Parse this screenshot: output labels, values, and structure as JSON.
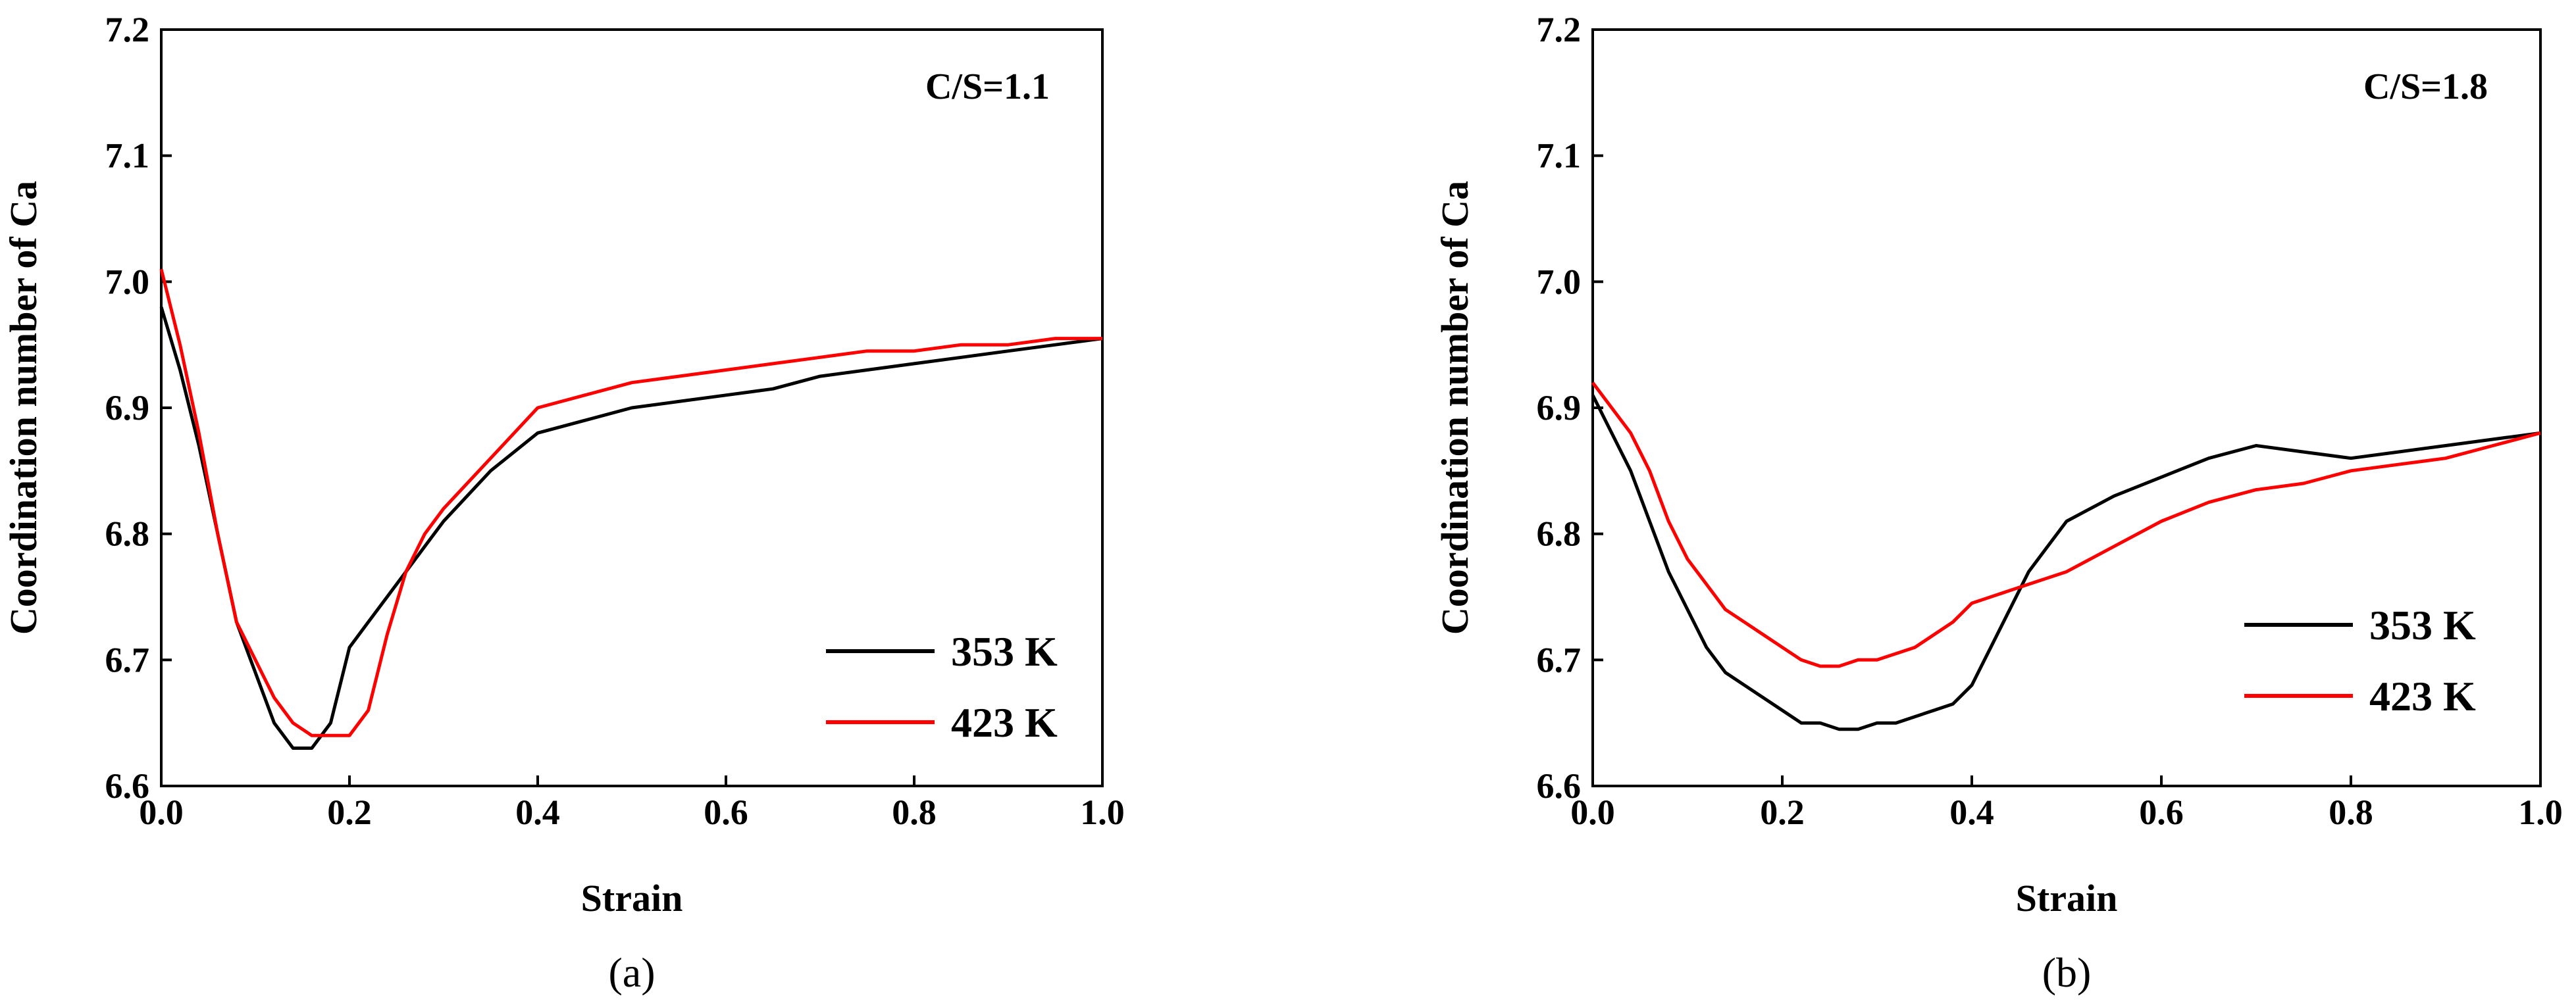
{
  "chart_data": [
    {
      "type": "line",
      "id": "a",
      "caption": "(a)",
      "annotation": "C/S=1.1",
      "xlabel": "Strain",
      "ylabel": "Coordination number of Ca",
      "xlim": [
        0.0,
        1.0
      ],
      "ylim": [
        6.6,
        7.2
      ],
      "xticks": [
        "0.0",
        "0.2",
        "0.4",
        "0.6",
        "0.8",
        "1.0"
      ],
      "yticks": [
        "6.6",
        "6.7",
        "6.8",
        "6.9",
        "7.0",
        "7.1",
        "7.2"
      ],
      "legend_position": "lower-right",
      "series": [
        {
          "name": "353 K",
          "color": "#000000",
          "x": [
            0.0,
            0.02,
            0.04,
            0.06,
            0.08,
            0.1,
            0.12,
            0.14,
            0.16,
            0.18,
            0.2,
            0.22,
            0.24,
            0.26,
            0.28,
            0.3,
            0.35,
            0.4,
            0.45,
            0.5,
            0.55,
            0.6,
            0.65,
            0.7,
            0.75,
            0.8,
            0.85,
            0.9,
            0.95,
            1.0
          ],
          "y": [
            6.98,
            6.93,
            6.87,
            6.8,
            6.73,
            6.69,
            6.65,
            6.63,
            6.63,
            6.65,
            6.71,
            6.73,
            6.75,
            6.77,
            6.79,
            6.81,
            6.85,
            6.88,
            6.89,
            6.9,
            6.905,
            6.91,
            6.915,
            6.925,
            6.93,
            6.935,
            6.94,
            6.945,
            6.95,
            6.955
          ]
        },
        {
          "name": "423 K",
          "color": "#ff0000",
          "x": [
            0.0,
            0.02,
            0.04,
            0.06,
            0.08,
            0.1,
            0.12,
            0.14,
            0.16,
            0.18,
            0.2,
            0.22,
            0.24,
            0.26,
            0.28,
            0.3,
            0.35,
            0.4,
            0.45,
            0.5,
            0.55,
            0.6,
            0.65,
            0.7,
            0.75,
            0.8,
            0.85,
            0.9,
            0.95,
            1.0
          ],
          "y": [
            7.01,
            6.95,
            6.88,
            6.8,
            6.73,
            6.7,
            6.67,
            6.65,
            6.64,
            6.64,
            6.64,
            6.66,
            6.72,
            6.77,
            6.8,
            6.82,
            6.86,
            6.9,
            6.91,
            6.92,
            6.925,
            6.93,
            6.935,
            6.94,
            6.945,
            6.945,
            6.95,
            6.95,
            6.955,
            6.955
          ]
        }
      ]
    },
    {
      "type": "line",
      "id": "b",
      "caption": "(b)",
      "annotation": "C/S=1.8",
      "xlabel": "Strain",
      "ylabel": "Coordination number of Ca",
      "xlim": [
        0.0,
        1.0
      ],
      "ylim": [
        6.6,
        7.2
      ],
      "xticks": [
        "0.0",
        "0.2",
        "0.4",
        "0.6",
        "0.8",
        "1.0"
      ],
      "yticks": [
        "6.6",
        "6.7",
        "6.8",
        "6.9",
        "7.0",
        "7.1",
        "7.2"
      ],
      "legend_position": "lower-right",
      "series": [
        {
          "name": "353 K",
          "color": "#000000",
          "x": [
            0.0,
            0.02,
            0.04,
            0.06,
            0.08,
            0.1,
            0.12,
            0.14,
            0.16,
            0.18,
            0.2,
            0.22,
            0.24,
            0.26,
            0.28,
            0.3,
            0.32,
            0.34,
            0.36,
            0.38,
            0.4,
            0.42,
            0.44,
            0.46,
            0.48,
            0.5,
            0.55,
            0.6,
            0.65,
            0.7,
            0.75,
            0.8,
            0.85,
            0.9,
            0.95,
            1.0
          ],
          "y": [
            6.91,
            6.88,
            6.85,
            6.81,
            6.77,
            6.74,
            6.71,
            6.69,
            6.68,
            6.67,
            6.66,
            6.65,
            6.65,
            6.645,
            6.645,
            6.65,
            6.65,
            6.655,
            6.66,
            6.665,
            6.68,
            6.71,
            6.74,
            6.77,
            6.79,
            6.81,
            6.83,
            6.845,
            6.86,
            6.87,
            6.865,
            6.86,
            6.865,
            6.87,
            6.875,
            6.88
          ]
        },
        {
          "name": "423 K",
          "color": "#ff0000",
          "x": [
            0.0,
            0.02,
            0.04,
            0.06,
            0.08,
            0.1,
            0.12,
            0.14,
            0.16,
            0.18,
            0.2,
            0.22,
            0.24,
            0.26,
            0.28,
            0.3,
            0.32,
            0.34,
            0.36,
            0.38,
            0.4,
            0.42,
            0.44,
            0.46,
            0.48,
            0.5,
            0.55,
            0.6,
            0.65,
            0.7,
            0.75,
            0.8,
            0.85,
            0.9,
            0.95,
            1.0
          ],
          "y": [
            6.92,
            6.9,
            6.88,
            6.85,
            6.81,
            6.78,
            6.76,
            6.74,
            6.73,
            6.72,
            6.71,
            6.7,
            6.695,
            6.695,
            6.7,
            6.7,
            6.705,
            6.71,
            6.72,
            6.73,
            6.745,
            6.75,
            6.755,
            6.76,
            6.765,
            6.77,
            6.79,
            6.81,
            6.825,
            6.835,
            6.84,
            6.85,
            6.855,
            6.86,
            6.87,
            6.88
          ]
        }
      ]
    }
  ]
}
